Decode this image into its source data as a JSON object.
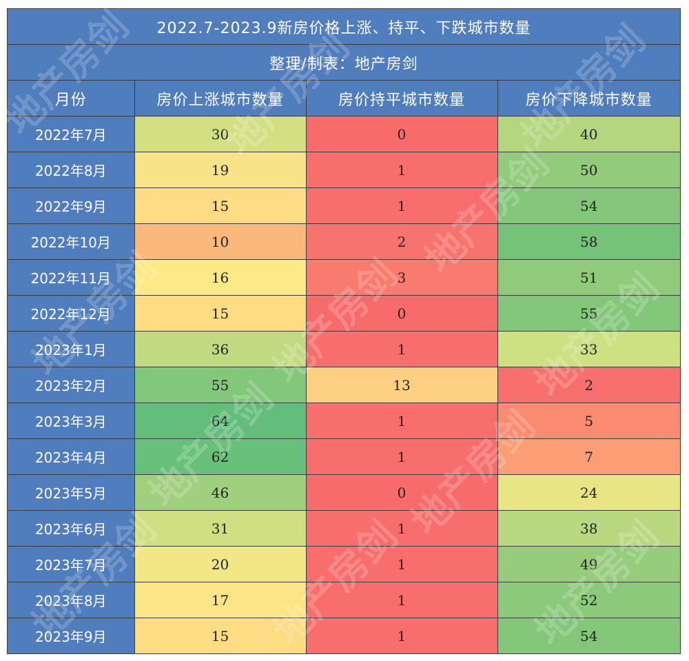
{
  "title": "2022.7-2023.9新房价格上涨、持平、下跌城市数量",
  "subtitle": "整理/制表：地产房剑",
  "watermark_text": "地产房剑",
  "colors": {
    "header": "#4f7dbd",
    "grid": "#3b3b3b",
    "text": "#222222"
  },
  "chart_data": {
    "type": "table",
    "title": "2022.7-2023.9新房价格上涨、持平、下跌城市数量",
    "subtitle": "整理/制表：地产房剑",
    "columns": [
      "月份",
      "房价上涨城市数量",
      "房价持平城市数量",
      "房价下降城市数量"
    ],
    "rows": [
      {
        "month": "2022年7月",
        "up": 30,
        "flat": 0,
        "down": 40,
        "colors": [
          "#d3e082",
          "#f86b6b",
          "#b3d67e"
        ]
      },
      {
        "month": "2022年8月",
        "up": 19,
        "flat": 1,
        "down": 50,
        "colors": [
          "#f9e388",
          "#f86e6c",
          "#92cb7b"
        ]
      },
      {
        "month": "2022年9月",
        "up": 15,
        "flat": 1,
        "down": 54,
        "colors": [
          "#fddc84",
          "#f86e6c",
          "#84c77a"
        ]
      },
      {
        "month": "2022年10月",
        "up": 10,
        "flat": 2,
        "down": 58,
        "colors": [
          "#fbb87b",
          "#f8736d",
          "#75c379"
        ]
      },
      {
        "month": "2022年11月",
        "up": 16,
        "flat": 3,
        "down": 51,
        "colors": [
          "#fde986",
          "#f97a6f",
          "#8fcb7a"
        ]
      },
      {
        "month": "2022年12月",
        "up": 15,
        "flat": 0,
        "down": 55,
        "colors": [
          "#fddc84",
          "#f86b6b",
          "#82c77a"
        ]
      },
      {
        "month": "2023年1月",
        "up": 36,
        "flat": 1,
        "down": 33,
        "colors": [
          "#c1da81",
          "#f86e6c",
          "#cde183"
        ]
      },
      {
        "month": "2023年2月",
        "up": 55,
        "flat": 13,
        "down": 2,
        "colors": [
          "#82c77a",
          "#fdcf80",
          "#f8706d"
        ]
      },
      {
        "month": "2023年3月",
        "up": 64,
        "flat": 1,
        "down": 5,
        "colors": [
          "#63be7b",
          "#f86e6c",
          "#fa8c72"
        ]
      },
      {
        "month": "2023年4月",
        "up": 62,
        "flat": 1,
        "down": 7,
        "colors": [
          "#69c07b",
          "#f86e6c",
          "#fb9e76"
        ]
      },
      {
        "month": "2023年5月",
        "up": 46,
        "flat": 0,
        "down": 24,
        "colors": [
          "#a0cf7e",
          "#f86b6b",
          "#e8e584"
        ]
      },
      {
        "month": "2023年6月",
        "up": 31,
        "flat": 1,
        "down": 38,
        "colors": [
          "#d0df82",
          "#f86e6c",
          "#bad880"
        ]
      },
      {
        "month": "2023年7月",
        "up": 20,
        "flat": 1,
        "down": 49,
        "colors": [
          "#f2e687",
          "#f86e6c",
          "#97cc7c"
        ]
      },
      {
        "month": "2023年8月",
        "up": 17,
        "flat": 1,
        "down": 52,
        "colors": [
          "#fbe586",
          "#f86e6c",
          "#8bc97b"
        ]
      },
      {
        "month": "2023年9月",
        "up": 15,
        "flat": 1,
        "down": 54,
        "colors": [
          "#fddc84",
          "#f86e6c",
          "#84c77a"
        ]
      }
    ]
  }
}
